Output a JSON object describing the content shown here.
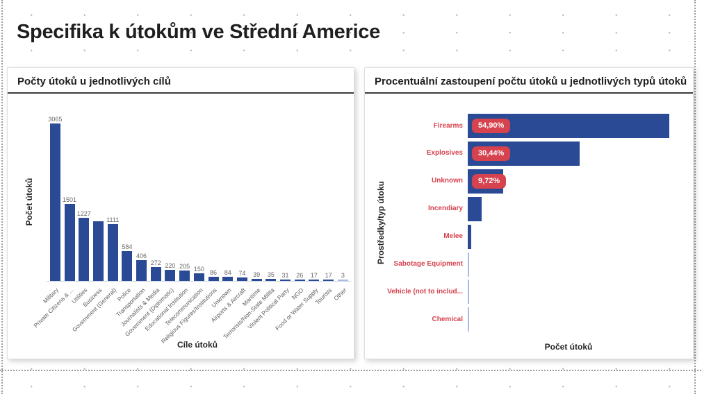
{
  "page": {
    "title": "Specifika k útokům ve Střední Americe"
  },
  "colors": {
    "bar_blue": "#2B4A96",
    "bar_blue_light": "#A9BCDF",
    "accent_red": "#D6424E",
    "title_text": "#1F1F1F",
    "value_label_gray": "#666666",
    "category_label_gray": "#5F5D5C"
  },
  "chart_data": [
    {
      "type": "bar",
      "orientation": "vertical",
      "title": "Počty útoků u jednotlivých cílů",
      "xlabel": "Cíle útoků",
      "ylabel": "Počet útoků",
      "categories": [
        "Military",
        "Private Citizens & ...",
        "Utilities",
        "Business",
        "Government (General)",
        "Police",
        "Transportation",
        "Journalists & Media",
        "Government (Diplomatic)",
        "Educational Institution",
        "Telecommunication",
        "Religious Figures/Institutions",
        "Unknown",
        "Airports & Aircraft",
        "Maritime",
        "Terrorists/Non-State Militia",
        "Violent Political Party",
        "NGO",
        "Food or Water Supply",
        "Tourists",
        "Other"
      ],
      "values": [
        3065,
        1501,
        1227,
        1160,
        1111,
        584,
        406,
        272,
        220,
        205,
        150,
        86,
        84,
        74,
        39,
        35,
        31,
        26,
        17,
        17,
        3
      ],
      "data_labels": [
        "3065",
        "1501",
        "1227",
        "",
        "1111",
        "584",
        "406",
        "272",
        "220",
        "205",
        "150",
        "86",
        "84",
        "74",
        "39",
        "35",
        "31",
        "26",
        "17",
        "17",
        "3"
      ],
      "ylim": [
        0,
        3200
      ],
      "grid": false,
      "legend": false
    },
    {
      "type": "bar",
      "orientation": "horizontal",
      "title": "Procentuální zastoupení počtu útoků u jednotlivých typů útoků",
      "xlabel": "Počet útoků",
      "ylabel": "Prostředky/typ útoku",
      "categories": [
        "Firearms",
        "Explosives",
        "Unknown",
        "Incendiary",
        "Melee",
        "Sabotage Equipment",
        "Vehicle (not to includ...",
        "Chemical"
      ],
      "values_percent": [
        54.9,
        30.44,
        9.72,
        3.8,
        0.9,
        0.3,
        0.3,
        0.3
      ],
      "data_labels": [
        "54,90%",
        "30,44%",
        "9,72%",
        "",
        "",
        "",
        "",
        ""
      ],
      "xlim_percent": [
        0,
        55
      ],
      "grid": false,
      "legend": false
    }
  ]
}
